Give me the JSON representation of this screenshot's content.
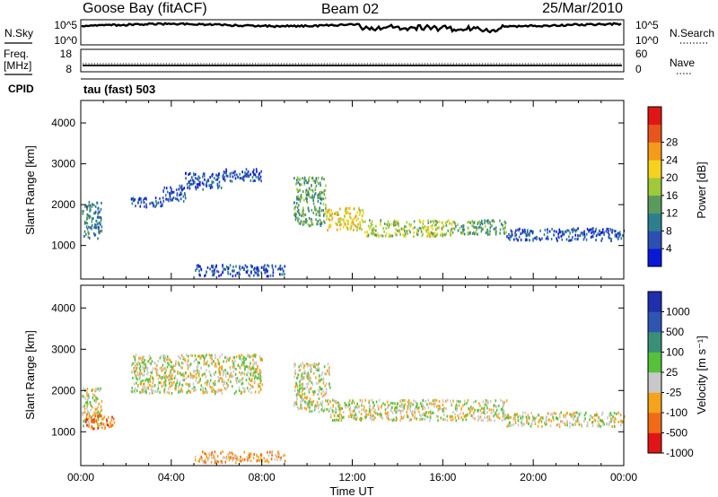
{
  "header": {
    "station": "Goose Bay (fitACF)",
    "beam": "Beam 02",
    "date": "25/Mar/2010"
  },
  "panels": {
    "nsky_label": "N.Sky",
    "nsky_ticks": [
      "10^5",
      "10^0"
    ],
    "nsearch_label": "N.Search",
    "nsearch_ticks": [
      "10^5",
      "10^0"
    ],
    "freq_label_1": "Freq.",
    "freq_label_2": "[MHz]",
    "freq_ticks": [
      "18",
      "8"
    ],
    "nave_label": "Nave",
    "nave_ticks": [
      "60",
      "0"
    ],
    "cpid_label": "CPID",
    "cpid_value": "tau (fast) 503"
  },
  "chart_data": [
    {
      "type": "heatmap",
      "name": "power",
      "ylabel": "Slant Range [km]",
      "y_ticks": [
        1000,
        2000,
        3000,
        4000
      ],
      "ylim": [
        180,
        4550
      ],
      "x_ticks": [
        "00:00",
        "04:00",
        "08:00",
        "12:00",
        "16:00",
        "20:00",
        "00:00"
      ],
      "xlim_hours": [
        0,
        24
      ],
      "colorbar": {
        "label": "Power [dB]",
        "ticks": [
          "4",
          "8",
          "12",
          "16",
          "20",
          "24",
          "28"
        ],
        "colors": [
          "#0a18d8",
          "#2c4fb4",
          "#2e7f8e",
          "#5a9a5c",
          "#a0c93a",
          "#f5d21d",
          "#f59a19",
          "#e8541c",
          "#e01616"
        ]
      },
      "echo_regions": [
        {
          "t": [
            0.05,
            0.9
          ],
          "r": [
            1200,
            2100
          ],
          "level": 2
        },
        {
          "t": [
            2.2,
            3.6
          ],
          "r": [
            1950,
            2200
          ],
          "level": 1
        },
        {
          "t": [
            3.6,
            4.6
          ],
          "r": [
            2100,
            2500
          ],
          "level": 1
        },
        {
          "t": [
            4.6,
            6.2
          ],
          "r": [
            2400,
            2800
          ],
          "level": 1
        },
        {
          "t": [
            6.2,
            8.0
          ],
          "r": [
            2600,
            2900
          ],
          "level": 1
        },
        {
          "t": [
            9.4,
            10.8
          ],
          "r": [
            1500,
            2700
          ],
          "level": 3
        },
        {
          "t": [
            10.8,
            12.5
          ],
          "r": [
            1400,
            1950
          ],
          "level": 5
        },
        {
          "t": [
            12.5,
            16.5
          ],
          "r": [
            1250,
            1650
          ],
          "level": 4
        },
        {
          "t": [
            16.5,
            18.8
          ],
          "r": [
            1300,
            1650
          ],
          "level": 3
        },
        {
          "t": [
            18.8,
            24.0
          ],
          "r": [
            1150,
            1450
          ],
          "level": 1
        },
        {
          "t": [
            5.0,
            9.0
          ],
          "r": [
            280,
            550
          ],
          "level": 1
        }
      ]
    },
    {
      "type": "heatmap",
      "name": "velocity",
      "ylabel": "Slant Range [km]",
      "y_ticks": [
        1000,
        2000,
        3000,
        4000
      ],
      "ylim": [
        180,
        4550
      ],
      "x_ticks": [
        "00:00",
        "04:00",
        "08:00",
        "12:00",
        "16:00",
        "20:00",
        "00:00"
      ],
      "xlim_hours": [
        0,
        24
      ],
      "xlabel": "Time UT",
      "colorbar": {
        "label": "Velocity [m s⁻¹]",
        "ticks": [
          "1000",
          "500",
          "100",
          "25",
          "-25",
          "-100",
          "-500",
          "-1000"
        ],
        "colors": [
          "#1f2fae",
          "#2f55b3",
          "#3a8f79",
          "#56c13b",
          "#c8c8c8",
          "#f5a31a",
          "#f06a17",
          "#e01616"
        ]
      },
      "echo_regions": [
        {
          "t": [
            0.05,
            0.9
          ],
          "r": [
            1150,
            2100
          ],
          "level": 4
        },
        {
          "t": [
            0.2,
            1.5
          ],
          "r": [
            1100,
            1450
          ],
          "level": 6
        },
        {
          "t": [
            2.2,
            8.0
          ],
          "r": [
            1950,
            2900
          ],
          "level": 4
        },
        {
          "t": [
            9.4,
            11.0
          ],
          "r": [
            1500,
            2700
          ],
          "level": 4
        },
        {
          "t": [
            11.0,
            18.8
          ],
          "r": [
            1300,
            1800
          ],
          "level": 4
        },
        {
          "t": [
            18.8,
            24.0
          ],
          "r": [
            1150,
            1500
          ],
          "level": 4
        },
        {
          "t": [
            5.0,
            9.0
          ],
          "r": [
            280,
            550
          ],
          "level": 5
        }
      ]
    }
  ]
}
